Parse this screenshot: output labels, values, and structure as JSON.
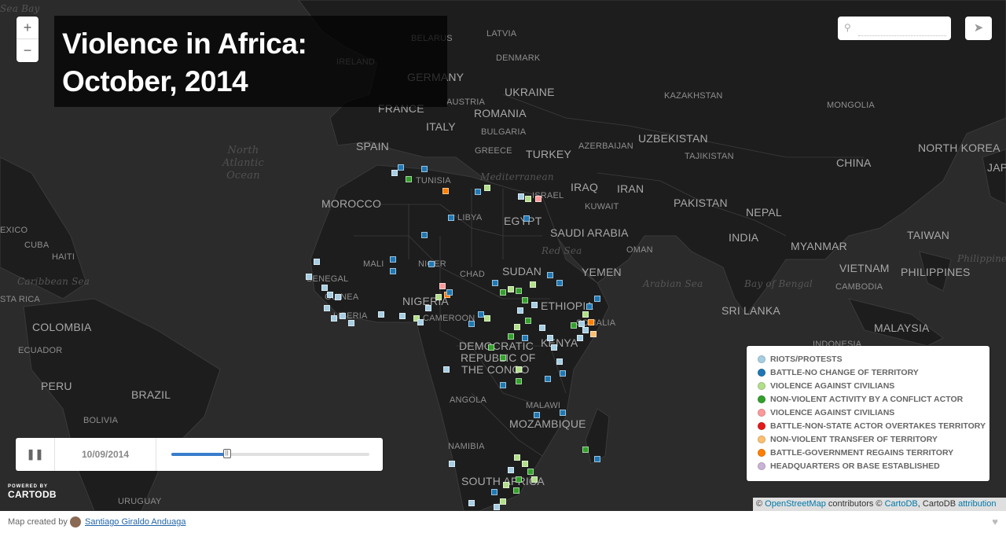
{
  "title": {
    "line1": "Violence in Africa:",
    "line2": "October, 2014"
  },
  "zoom": {
    "in_label": "+",
    "out_label": "−"
  },
  "search": {
    "placeholder": ""
  },
  "timeline": {
    "date": "10/09/2014",
    "progress": 0.28,
    "pause_label": "❚❚"
  },
  "legend": [
    {
      "label": "RIOTS/PROTESTS",
      "color": "#a6cee3"
    },
    {
      "label": "BATTLE-NO CHANGE OF TERRITORY",
      "color": "#1f78b4"
    },
    {
      "label": "VIOLENCE AGAINST CIVILIANS",
      "color": "#b2df8a"
    },
    {
      "label": "NON-VIOLENT ACTIVITY BY A CONFLICT ACTOR",
      "color": "#33a02c"
    },
    {
      "label": "VIOLENCE AGAINST CIVILIANS",
      "color": "#fb9a99"
    },
    {
      "label": "BATTLE-NON-STATE ACTOR OVERTAKES TERRITORY",
      "color": "#e31a1c"
    },
    {
      "label": "NON-VIOLENT TRANSFER OF TERRITORY",
      "color": "#fdbf6f"
    },
    {
      "label": "BATTLE-GOVERNMENT REGAINS TERRITORY",
      "color": "#ff7f00"
    },
    {
      "label": "HEADQUARTERS OR BASE ESTABLISHED",
      "color": "#cab2d6"
    }
  ],
  "labels": {
    "big": [
      "SPAIN",
      "FRANCE",
      "GERMANY",
      "ITALY",
      "UKRAINE",
      "ROMANIA",
      "TURKEY",
      "UZBEKISTAN",
      "CHINA",
      "NORTH KOREA",
      "MOROCCO",
      "EGYPT",
      "IRAQ",
      "IRAN",
      "PAKISTAN",
      "SAUDI ARABIA",
      "NEPAL",
      "INDIA",
      "MYANMAR",
      "TAIWAN",
      "SUDAN",
      "YEMEN",
      "VIETNAM",
      "PHILIPPINES",
      "NIGERIA",
      "ETHIOPIA",
      "SRI LANKA",
      "MALAYSIA",
      "COLOMBIA",
      "DEMOCRATIC",
      "REPUBLIC OF",
      "THE CONGO",
      "KENYA",
      "BRAZIL",
      "PERU",
      "MOZAMBIQUE",
      "SOUTH AFRICA",
      "JAPA"
    ],
    "mid": [
      "LATVIA",
      "BELARUS",
      "DENMARK",
      "IRELAND",
      "AUSTRIA",
      "BULGARIA",
      "GREECE",
      "KAZAKHSTAN",
      "MONGOLIA",
      "AZERBAIJAN",
      "TAJIKISTAN",
      "TUNISIA",
      "LIBYA",
      "ISRAEL",
      "KUWAIT",
      "OMAN",
      "MALI",
      "NIGER",
      "CHAD",
      "SENEGAL",
      "GUINEA",
      "LIBERIA",
      "CAMEROON",
      "SOMALIA",
      "CAMBODIA",
      "ANGOLA",
      "MALAWI",
      "NAMIBIA",
      "BOLIVIA",
      "ECUADOR",
      "URUGUAY",
      "CUBA",
      "HAITI",
      "STA RICA",
      "exico",
      "INDONESIA"
    ],
    "seas": [
      "Mediterranean",
      "Red Sea",
      "Arabian Sea",
      "Bay of Bengal",
      "Caribbean Sea",
      "Philippine",
      "Sea Bay"
    ],
    "ocean": [
      "North",
      "Atlantic",
      "Ocean"
    ]
  },
  "attribution": {
    "pre": "© ",
    "osm": "OpenStreetMap",
    "mid": " contributors © ",
    "cartodb": "CartoDB",
    "sep": ", CartoDB ",
    "attr": "attribution"
  },
  "powered": {
    "line1": "POWERED BY",
    "line2": "CARTODB"
  },
  "footer": {
    "prefix": "Map created by",
    "author": "Santiago Giraldo Anduaga",
    "heart": "♥"
  },
  "icons": {
    "search": "search-icon",
    "share": "paper-plane-icon"
  }
}
